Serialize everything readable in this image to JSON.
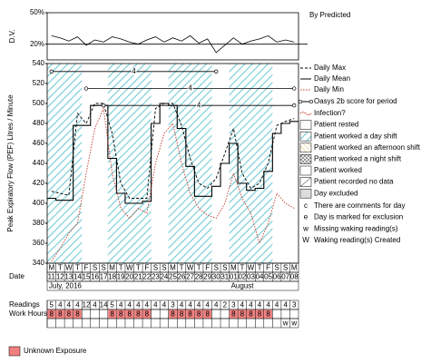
{
  "chart_data": {
    "type": "line",
    "dv_panel": {
      "y_label": "D.V.",
      "ylim": [
        5,
        50
      ],
      "yticks": [
        {
          "value": 50,
          "label": "50%"
        },
        {
          "value": 20,
          "label": "20%"
        }
      ],
      "reference_name": "By Predicted",
      "reference": 20,
      "values": [
        28,
        26,
        23,
        27,
        19,
        24,
        22,
        27,
        25,
        22,
        20,
        24,
        27,
        22,
        26,
        23,
        28,
        21,
        25,
        12,
        19,
        26,
        20,
        23,
        25,
        28,
        22,
        24,
        22
      ]
    },
    "y_label": "Peak Expiratory Flow (PEF) Litres / Minute",
    "ylim": [
      340,
      540
    ],
    "yticks": [
      340,
      360,
      380,
      400,
      420,
      440,
      460,
      480,
      500,
      520,
      540
    ],
    "weekdays": [
      "M",
      "T",
      "W",
      "T",
      "F",
      "S",
      "S",
      "M",
      "T",
      "W",
      "T",
      "F",
      "S",
      "S",
      "M",
      "T",
      "W",
      "T",
      "F",
      "S",
      "S",
      "M",
      "T",
      "W",
      "T",
      "F",
      "S",
      "S",
      "M"
    ],
    "dates": [
      "11",
      "12",
      "13",
      "14",
      "15",
      "16",
      "17",
      "18",
      "19",
      "20",
      "21",
      "22",
      "23",
      "24",
      "25",
      "26",
      "27",
      "28",
      "29",
      "30",
      "31",
      "01",
      "02",
      "03",
      "04",
      "05",
      "06",
      "07",
      "08"
    ],
    "date_label": "Date",
    "months": [
      {
        "index": 0,
        "label": "July, 2016"
      },
      {
        "index": 21,
        "label": "August"
      }
    ],
    "series": [
      {
        "name": "Daily Max",
        "color": "#000000",
        "style": "dashed",
        "values": [
          412,
          410,
          408,
          490,
          480,
          500,
          500,
          470,
          420,
          405,
          405,
          405,
          495,
          500,
          500,
          478,
          445,
          420,
          415,
          425,
          450,
          475,
          430,
          415,
          420,
          440,
          478,
          482,
          485
        ]
      },
      {
        "name": "Daily Mean",
        "color": "#000000",
        "style": "step",
        "values": [
          405,
          403,
          403,
          478,
          478,
          498,
          498,
          445,
          410,
          400,
          400,
          402,
          480,
          500,
          498,
          475,
          437,
          407,
          407,
          417,
          440,
          460,
          420,
          413,
          415,
          432,
          470,
          480,
          482
        ]
      },
      {
        "name": "Daily Min",
        "color": "#c0392b",
        "style": "dotted",
        "values": [
          342,
          355,
          370,
          380,
          430,
          475,
          495,
          430,
          395,
          385,
          395,
          390,
          440,
          470,
          480,
          440,
          410,
          395,
          388,
          385,
          400,
          430,
          405,
          390,
          360,
          380,
          410,
          400,
          395
        ]
      }
    ],
    "oasys_name": "Oasys 2b score for period",
    "oasys_periods": [
      {
        "start": 0,
        "end": 19,
        "level": 532,
        "label": "4"
      },
      {
        "start": 4,
        "end": 28,
        "level": 515,
        "label": "4"
      },
      {
        "start": 6,
        "end": 28,
        "level": 498,
        "label": "4"
      }
    ],
    "legend": [
      "Infection?",
      "Patient rested",
      "Patient worked a day shift",
      "Patient worked an afternoon shift",
      "Patient worked a night shift",
      "Patient worked",
      "Patient recorded no data",
      "Day excluded"
    ],
    "notes": [
      {
        "key": "c",
        "text": "There are comments for day"
      },
      {
        "key": "e",
        "text": "Day is marked for exclusion"
      },
      {
        "key": "w",
        "text": "Missing waking reading(s)"
      },
      {
        "key": "W",
        "text": "Waking reading(s) Created"
      }
    ],
    "readings_label": "Readings",
    "readings": [
      5,
      4,
      4,
      4,
      12,
      4,
      14,
      5,
      4,
      4,
      4,
      4,
      4,
      4,
      3,
      4,
      4,
      4,
      4,
      4,
      2,
      3,
      4,
      4,
      4,
      4,
      4,
      4,
      3
    ],
    "work_label": "Work Hours",
    "work_hours": [
      8,
      8,
      8,
      8,
      null,
      null,
      null,
      8,
      8,
      8,
      8,
      8,
      null,
      null,
      8,
      8,
      8,
      8,
      8,
      null,
      null,
      8,
      8,
      8,
      8,
      8,
      null,
      null,
      null
    ],
    "flags": [
      null,
      null,
      null,
      null,
      null,
      null,
      null,
      null,
      null,
      null,
      null,
      null,
      null,
      null,
      null,
      null,
      null,
      null,
      null,
      null,
      null,
      null,
      null,
      null,
      null,
      null,
      null,
      "w",
      "w"
    ],
    "exposure_name": "Unknown Exposure",
    "exposure_color": "#f08080",
    "hatch_color": "#7fd0d8"
  }
}
